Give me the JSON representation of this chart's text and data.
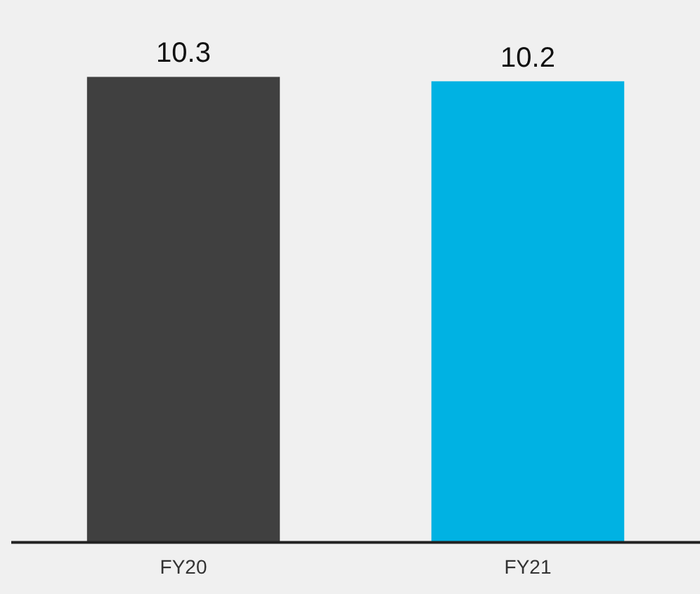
{
  "chart_data": {
    "type": "bar",
    "categories": [
      "FY20",
      "FY21"
    ],
    "values": [
      10.3,
      10.2
    ],
    "colors": [
      "#404040",
      "#00b2e3"
    ],
    "tick_labels": "x",
    "data_labels": true,
    "grid": false,
    "legend": false
  }
}
